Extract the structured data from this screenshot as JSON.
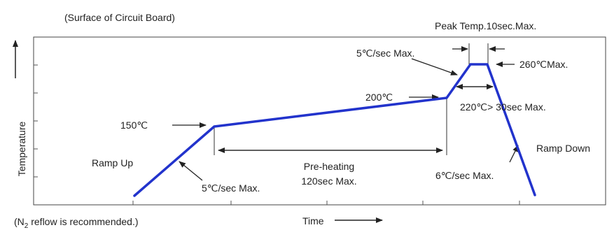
{
  "title_note": "(Surface of Circuit Board)",
  "bottom_note": {
    "prefix": "(N",
    "subscript": "2",
    "suffix": " reflow is recommended.)"
  },
  "axes": {
    "y_label": "Temperature",
    "x_label": "Time"
  },
  "labels": {
    "peak": "Peak Temp.10sec.Max.",
    "rise_rate": "5℃/sec Max.",
    "peak_temp": "260℃Max.",
    "temp_200": "200℃",
    "above_220": "220℃> 30sec Max.",
    "temp_150": "150℃",
    "ramp_up": "Ramp Up",
    "ramp_up_rate": "5℃/sec Max.",
    "preheat": "Pre-heating",
    "preheat_time": "120sec Max.",
    "ramp_down": "Ramp Down",
    "ramp_down_rate": "6℃/sec Max."
  },
  "colors": {
    "profile": "#2233cc",
    "lines": "#222222",
    "grid": "#777777"
  }
}
